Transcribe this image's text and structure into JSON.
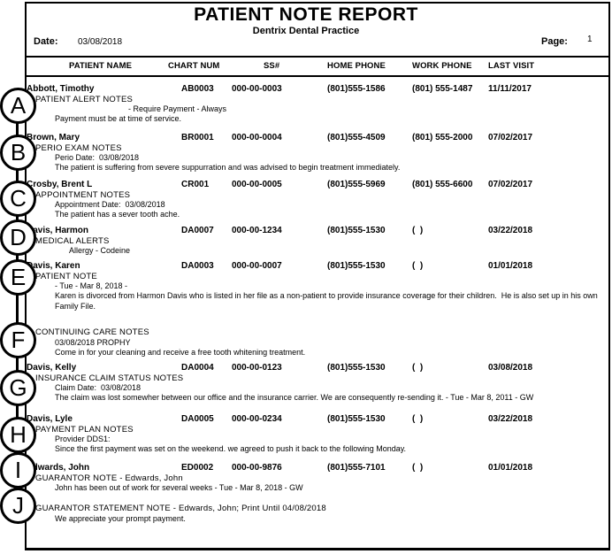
{
  "report": {
    "title": "PATIENT NOTE REPORT",
    "practice_name": "Dentrix Dental Practice",
    "date_label": "Date:",
    "date_value": "03/08/2018",
    "page_label": "Page:",
    "page_number": "1"
  },
  "table": {
    "columns": [
      "PATIENT NAME",
      "CHART NUM",
      "SS#",
      "HOME PHONE",
      "WORK PHONE",
      "LAST VISIT"
    ]
  },
  "entries": [
    {
      "callout": "A",
      "patient": {
        "name": "Abbott, Timothy",
        "chart": "AB0003",
        "ssn": "000-00-0003",
        "home_phone": "(801)555-1586",
        "work_phone": "(801) 555-1487",
        "last_visit": "11/11/2017"
      },
      "note_title": "PATIENT ALERT NOTES",
      "note_lines": [
        {
          "style": "deep",
          "text": "- Require Payment - Always"
        },
        {
          "style": "detail",
          "text": "Payment must be at time of service."
        }
      ]
    },
    {
      "callout": "B",
      "patient": {
        "name": "Brown, Mary",
        "chart": "BR0001",
        "ssn": "000-00-0004",
        "home_phone": "(801)555-4509",
        "work_phone": "(801) 555-2000",
        "last_visit": "07/02/2017"
      },
      "note_title": "PERIO EXAM NOTES",
      "note_lines": [
        {
          "style": "detail",
          "text": "Perio Date:  03/08/2018"
        },
        {
          "style": "detail",
          "text": "The patient is suffering from severe suppurration and was advised to begin treatment immediately."
        }
      ]
    },
    {
      "callout": "C",
      "patient": {
        "name": "Crosby, Brent L",
        "chart": "CR001",
        "ssn": "000-00-0005",
        "home_phone": "(801)555-5969",
        "work_phone": "(801) 555-6600",
        "last_visit": "07/02/2017"
      },
      "note_title": "APPOINTMENT NOTES",
      "note_lines": [
        {
          "style": "detail",
          "text": "Appointment Date:  03/08/2018"
        },
        {
          "style": "detail",
          "text": "The patient has a sever tooth ache."
        }
      ]
    },
    {
      "callout": "D",
      "patient": {
        "name": "Davis, Harmon",
        "chart": "DA0007",
        "ssn": "000-00-1234",
        "home_phone": "(801)555-1530",
        "work_phone": "(  )",
        "last_visit": "03/22/2018"
      },
      "note_title": "MEDICAL ALERTS",
      "note_lines": [
        {
          "style": "sub",
          "text": "Allergy - Codeine"
        }
      ]
    },
    {
      "callout": "E",
      "patient": {
        "name": "Davis, Karen",
        "chart": "DA0003",
        "ssn": "000-00-0007",
        "home_phone": "(801)555-1530",
        "work_phone": "(  )",
        "last_visit": "01/01/2018"
      },
      "note_title": "PATIENT NOTE",
      "note_lines": [
        {
          "style": "detail",
          "text": "- Tue - Mar 8, 2018 -"
        },
        {
          "style": "detail",
          "text": "Karen is divorced from Harmon Davis who is listed in her file as a non-patient to provide insurance coverage for their children.  He is also set up in his own Family File."
        }
      ]
    },
    {
      "callout": "F",
      "patient": null,
      "note_title": "CONTINUING CARE NOTES",
      "note_lines": [
        {
          "style": "detail",
          "text": "03/08/2018 PROPHY"
        },
        {
          "style": "detail",
          "text": "Come in for your cleaning and receive a free tooth whitening treatment."
        }
      ]
    },
    {
      "callout": "G",
      "patient": {
        "name": "Davis, Kelly",
        "chart": "DA0004",
        "ssn": "000-00-0123",
        "home_phone": "(801)555-1530",
        "work_phone": "(  )",
        "last_visit": "03/08/2018"
      },
      "note_title": "INSURANCE CLAIM STATUS NOTES",
      "note_lines": [
        {
          "style": "detail",
          "text": "Claim Date:  03/08/2018"
        },
        {
          "style": "detail",
          "text": "The claim was lost somewher between our office and the insurance carrier. We are consequently re-sending it. - Tue - Mar 8, 2011 - GW"
        }
      ]
    },
    {
      "callout": "H",
      "patient": {
        "name": "Davis, Lyle",
        "chart": "DA0005",
        "ssn": "000-00-0234",
        "home_phone": "(801)555-1530",
        "work_phone": "(  )",
        "last_visit": "03/22/2018"
      },
      "note_title": "PAYMENT PLAN NOTES",
      "note_lines": [
        {
          "style": "detail",
          "text": "Provider DDS1:"
        },
        {
          "style": "detail",
          "text": "Since the first payment was set on the weekend. we agreed to push it back to the following Monday."
        }
      ]
    },
    {
      "callout": "I",
      "patient": {
        "name": "Edwards, John",
        "chart": "ED0002",
        "ssn": "000-00-9876",
        "home_phone": "(801)555-7101",
        "work_phone": "(  )",
        "last_visit": "01/01/2018"
      },
      "note_title": "GUARANTOR NOTE - Edwards, John",
      "note_lines": [
        {
          "style": "detail",
          "text": "John has been out of work for several weeks - Tue - Mar 8, 2018 - GW"
        }
      ]
    },
    {
      "callout": "J",
      "patient": null,
      "note_title": "GUARANTOR STATEMENT NOTE - Edwards, John; Print Until 04/08/2018",
      "note_lines": [
        {
          "style": "detail",
          "text": "We appreciate your prompt payment."
        }
      ]
    }
  ]
}
